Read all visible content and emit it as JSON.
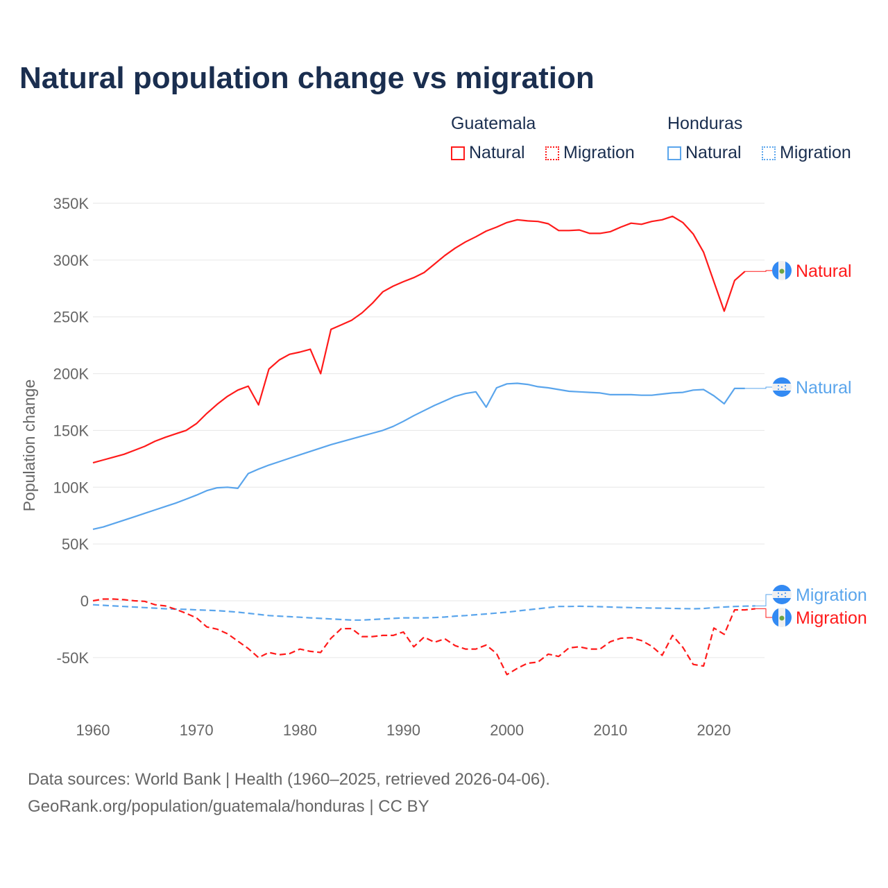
{
  "title": "Natural population change vs migration",
  "legend": {
    "groups": [
      {
        "name": "Guatemala",
        "items": [
          "Natural",
          "Migration"
        ]
      },
      {
        "name": "Honduras",
        "items": [
          "Natural",
          "Migration"
        ]
      }
    ]
  },
  "colors": {
    "guatemala": "#ff1a1a",
    "honduras": "#5aa5ec",
    "title": "#1a2e4f"
  },
  "footer": {
    "line1": "Data sources: World Bank | Health (1960–2025, retrieved 2026-04-06).",
    "line2": "GeoRank.org/population/guatemala/honduras | CC BY"
  },
  "chart_data": {
    "type": "line",
    "title": "Natural population change vs migration",
    "xlabel": "",
    "ylabel": "Population change",
    "xlim": [
      1960,
      2025
    ],
    "ylim": [
      -90000,
      350000
    ],
    "x_ticks": [
      1960,
      1970,
      1980,
      1990,
      2000,
      2010,
      2020
    ],
    "x_tick_labels": [
      "1960",
      "1970",
      "1980",
      "1990",
      "2000",
      "2010",
      "2020"
    ],
    "y_ticks": [
      -50000,
      0,
      50000,
      100000,
      150000,
      200000,
      250000,
      300000,
      350000
    ],
    "y_tick_labels": [
      "-50K",
      "0",
      "50K",
      "100K",
      "150K",
      "200K",
      "250K",
      "300K",
      "350K"
    ],
    "grid": true,
    "legend_position": "top-right",
    "series": [
      {
        "name": "Guatemala Natural",
        "end_label": "Natural",
        "style": "solid",
        "start_year": 1960,
        "values_k": [
          121.5,
          124,
          126.5,
          129,
          132.5,
          136,
          140.5,
          144,
          147,
          150,
          156,
          165,
          173,
          180,
          185.5,
          189,
          172.5,
          204,
          212,
          217,
          219,
          221.5,
          200,
          239,
          243,
          247,
          253.5,
          262,
          272,
          277,
          281,
          284.5,
          289,
          296.5,
          304,
          310.5,
          316,
          320.5,
          325.5,
          329,
          333,
          335.5,
          334.5,
          334,
          332,
          326,
          326,
          326.5,
          323.5,
          323.5,
          325,
          329,
          332.5,
          331.5,
          334,
          335.5,
          338.5,
          333,
          323,
          307,
          281,
          255,
          282,
          290
        ]
      },
      {
        "name": "Honduras Natural",
        "end_label": "Natural",
        "style": "solid",
        "start_year": 1960,
        "values_k": [
          63,
          65,
          68,
          71,
          74,
          77,
          80,
          83,
          86,
          89.5,
          93,
          97,
          99.5,
          100,
          99,
          112,
          116,
          119.5,
          122.5,
          125.5,
          128.5,
          131.5,
          134.5,
          137.5,
          140,
          142.5,
          145,
          147.5,
          150,
          153.5,
          158,
          163,
          167.5,
          172,
          176,
          180,
          182.5,
          184,
          170.5,
          187.5,
          191,
          191.5,
          190.5,
          188.5,
          187.5,
          186,
          184.5,
          184,
          183.5,
          183,
          181.5,
          181.5,
          181.5,
          181,
          181,
          182,
          183,
          183.5,
          185.5,
          186,
          180.5,
          173.5,
          187,
          187
        ]
      },
      {
        "name": "Honduras Migration",
        "end_label": "Migration",
        "style": "dashed",
        "start_year": 1960,
        "values_k": [
          -3.5,
          -4,
          -4.5,
          -5,
          -5.5,
          -6,
          -6.5,
          -7,
          -7.3,
          -7.6,
          -8,
          -8.3,
          -8.7,
          -9.3,
          -10,
          -11,
          -12,
          -13,
          -13.5,
          -14,
          -14.5,
          -15,
          -15.5,
          -16,
          -16.5,
          -17,
          -17,
          -16.5,
          -16,
          -15.5,
          -15,
          -15,
          -15,
          -14.8,
          -14.3,
          -13.5,
          -13,
          -12.3,
          -11.6,
          -10.8,
          -10,
          -9,
          -8,
          -7,
          -6,
          -5,
          -5,
          -4.8,
          -5,
          -5.2,
          -5.5,
          -5.8,
          -6,
          -6.2,
          -6.4,
          -6.5,
          -6.7,
          -6.9,
          -7,
          -6.8,
          -6,
          -5.5,
          -5,
          -4.7,
          -4.5
        ]
      },
      {
        "name": "Guatemala Migration",
        "end_label": "Migration",
        "style": "dashed",
        "start_year": 1960,
        "values_k": [
          0,
          1.5,
          1.5,
          1,
          0,
          -0.5,
          -3.5,
          -4.5,
          -7.5,
          -11,
          -15,
          -23,
          -25,
          -29,
          -35.5,
          -42,
          -50,
          -45.5,
          -47.5,
          -46.5,
          -42.5,
          -44.5,
          -45.5,
          -33,
          -24.5,
          -24.5,
          -31.5,
          -31.5,
          -30.5,
          -30.5,
          -27.5,
          -40.5,
          -32,
          -36.5,
          -33.5,
          -39.5,
          -42.5,
          -42.5,
          -39,
          -46.5,
          -65,
          -59.5,
          -55,
          -54,
          -47,
          -49,
          -41.5,
          -40.5,
          -42.5,
          -42.5,
          -36,
          -33,
          -32.5,
          -35,
          -40,
          -48,
          -30.5,
          -41,
          -56,
          -57.5,
          -24,
          -29.5,
          -8,
          -8,
          -7
        ]
      }
    ]
  }
}
